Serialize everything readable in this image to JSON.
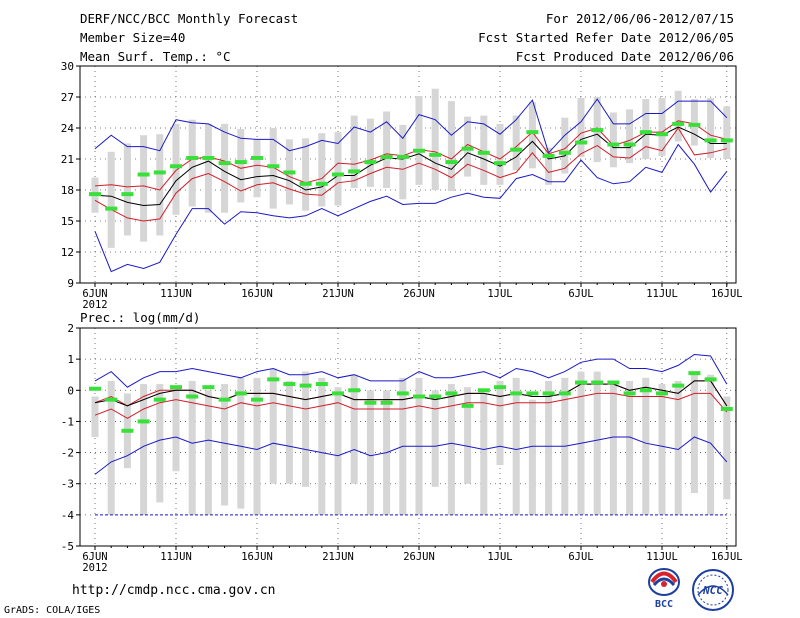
{
  "header": {
    "title": "DERF/NCC/BCC Monthly Forecast",
    "member_size": "Member Size=40",
    "period": "For 2012/06/06-2012/07/15",
    "fcst_started": "Fcst Started Refer Date 2012/06/05",
    "fcst_produced": "Fcst Produced Date 2012/06/06"
  },
  "footer": {
    "url": "http://cmdp.ncc.cma.gov.cn",
    "credit": "GrADS: COLA/IGES",
    "logo_left_text": "BCC",
    "logo_right_text": "NCC"
  },
  "colors": {
    "box": "#d6d6d6",
    "median": "#000000",
    "quartile": "#d21e28",
    "extreme": "#1a1ac8",
    "observed": "#3ae03a"
  },
  "chart_data": [
    {
      "type": "box-line",
      "title": "Mean Surf. Temp.: °C",
      "ylabel": "Mean Surf. Temp.: °C",
      "ylim": [
        9,
        30
      ],
      "yticks": [
        9,
        12,
        15,
        18,
        21,
        24,
        27,
        30
      ],
      "grid": true,
      "x_start": "6JUN",
      "x_end": "16JUL",
      "x_ticks": [
        {
          "day": 0,
          "label": "6JUN",
          "sub": "2012"
        },
        {
          "day": 5,
          "label": "11JUN"
        },
        {
          "day": 10,
          "label": "16JUN"
        },
        {
          "day": 15,
          "label": "21JUN"
        },
        {
          "day": 20,
          "label": "26JUN"
        },
        {
          "day": 25,
          "label": "1JUL"
        },
        {
          "day": 30,
          "label": "6JUL"
        },
        {
          "day": 35,
          "label": "11JUL"
        },
        {
          "day": 39,
          "label": "16JUL"
        }
      ],
      "days": 39,
      "series": {
        "max": [
          22.0,
          23.3,
          22.2,
          22.2,
          21.8,
          24.8,
          24.5,
          24.4,
          23.6,
          23.0,
          22.9,
          22.9,
          21.8,
          22.2,
          22.8,
          22.5,
          24.1,
          23.6,
          24.6,
          23.0,
          25.3,
          24.8,
          23.3,
          24.6,
          24.4,
          23.4,
          24.8,
          26.7,
          21.6,
          23.3,
          24.6,
          26.8,
          24.4,
          24.4,
          25.4,
          25.4,
          26.6,
          26.6,
          26.6,
          25.0
        ],
        "q3": [
          18.4,
          18.5,
          18.3,
          18.4,
          18.0,
          19.9,
          21.0,
          21.2,
          20.8,
          20.1,
          20.4,
          20.2,
          19.3,
          18.7,
          19.1,
          20.6,
          20.5,
          20.9,
          21.5,
          21.3,
          21.9,
          21.7,
          21.0,
          22.4,
          21.7,
          21.0,
          22.2,
          23.6,
          21.5,
          22.0,
          23.5,
          24.0,
          22.3,
          22.8,
          23.6,
          23.6,
          24.7,
          24.4,
          23.3,
          22.9
        ],
        "median": [
          17.5,
          17.4,
          16.8,
          16.5,
          16.6,
          18.9,
          20.2,
          20.8,
          19.8,
          19.0,
          19.3,
          19.4,
          18.9,
          18.0,
          18.3,
          19.4,
          19.4,
          20.4,
          21.1,
          21.0,
          21.5,
          20.6,
          20.0,
          21.6,
          21.0,
          20.3,
          21.2,
          22.7,
          21.0,
          21.3,
          22.9,
          23.4,
          22.1,
          22.1,
          23.4,
          23.3,
          24.1,
          23.4,
          22.5,
          22.5
        ],
        "q1": [
          17.0,
          16.1,
          15.3,
          15.0,
          15.2,
          17.7,
          19.1,
          19.6,
          18.8,
          17.9,
          18.5,
          18.7,
          18.1,
          17.6,
          17.5,
          18.7,
          18.9,
          19.6,
          20.2,
          20.0,
          20.6,
          20.0,
          19.2,
          20.5,
          19.9,
          19.2,
          19.7,
          21.6,
          19.7,
          20.1,
          21.5,
          22.3,
          21.2,
          21.1,
          22.2,
          21.8,
          24.0,
          21.4,
          21.6,
          22.0
        ],
        "min": [
          14.0,
          10.1,
          10.8,
          10.4,
          11.0,
          13.7,
          16.2,
          16.2,
          14.7,
          15.9,
          15.8,
          15.5,
          15.3,
          15.5,
          16.2,
          15.5,
          16.2,
          16.9,
          17.4,
          16.6,
          16.7,
          16.7,
          17.3,
          17.7,
          17.3,
          17.2,
          19.1,
          19.5,
          18.8,
          18.8,
          20.9,
          19.2,
          18.6,
          18.8,
          20.2,
          19.7,
          22.4,
          20.5,
          17.8,
          19.8
        ],
        "box_hi": [
          19.2,
          21.7,
          22.5,
          23.3,
          23.4,
          24.4,
          24.8,
          24.4,
          24.4,
          23.9,
          22.9,
          24.0,
          22.9,
          23.0,
          23.5,
          23.6,
          25.2,
          24.9,
          25.6,
          24.3,
          27.1,
          27.8,
          26.6,
          25.1,
          25.2,
          24.4,
          25.2,
          26.5,
          22.1,
          25.0,
          26.9,
          27.0,
          25.5,
          25.8,
          26.8,
          26.9,
          27.6,
          26.8,
          26.9,
          26.1
        ],
        "box_lo": [
          15.8,
          12.4,
          13.6,
          13.0,
          13.6,
          15.6,
          16.4,
          15.8,
          15.8,
          16.8,
          17.3,
          16.2,
          16.6,
          16.0,
          16.4,
          16.5,
          18.2,
          18.3,
          18.2,
          17.1,
          18.5,
          18.0,
          17.9,
          19.3,
          18.5,
          18.5,
          19.9,
          20.1,
          18.5,
          19.6,
          21.2,
          20.7,
          20.2,
          20.6,
          21.0,
          21.3,
          22.7,
          22.3,
          21.1,
          21.0
        ],
        "observed": [
          17.6,
          16.2,
          17.6,
          19.5,
          19.7,
          20.3,
          21.1,
          21.1,
          20.6,
          20.7,
          21.1,
          20.3,
          19.7,
          18.6,
          18.6,
          19.5,
          19.8,
          20.7,
          21.2,
          21.2,
          21.8,
          21.4,
          20.7,
          22.0,
          21.6,
          20.6,
          21.9,
          23.6,
          21.3,
          21.6,
          22.6,
          23.8,
          22.4,
          22.4,
          23.6,
          23.4,
          24.4,
          24.3,
          22.8,
          22.8
        ]
      }
    },
    {
      "type": "box-line",
      "title": "Prec.: log(mm/d)",
      "ylabel": "Prec.: log(mm/d)",
      "ylim": [
        -5,
        2
      ],
      "yticks": [
        -5,
        -4,
        -3,
        -2,
        -1,
        0,
        1,
        2
      ],
      "grid": true,
      "x_ticks": [
        {
          "day": 0,
          "label": "6JUN",
          "sub": "2012"
        },
        {
          "day": 5,
          "label": "11JUN"
        },
        {
          "day": 10,
          "label": "16JUN"
        },
        {
          "day": 15,
          "label": "21JUN"
        },
        {
          "day": 20,
          "label": "26JUN"
        },
        {
          "day": 25,
          "label": "1JUL"
        },
        {
          "day": 30,
          "label": "6JUL"
        },
        {
          "day": 35,
          "label": "11JUL"
        },
        {
          "day": 39,
          "label": "16JUL"
        }
      ],
      "days": 39,
      "series": {
        "max": [
          0.3,
          0.6,
          0.1,
          0.4,
          0.6,
          0.6,
          0.7,
          0.6,
          0.5,
          0.4,
          0.6,
          0.7,
          0.5,
          0.5,
          0.6,
          0.4,
          0.5,
          0.3,
          0.3,
          0.3,
          0.6,
          0.4,
          0.4,
          0.5,
          0.6,
          0.4,
          0.7,
          0.6,
          0.4,
          0.6,
          0.9,
          1.0,
          1.0,
          0.7,
          0.7,
          0.6,
          0.8,
          1.15,
          1.1,
          0.2
        ],
        "q3": [
          -0.4,
          -0.2,
          -0.5,
          -0.2,
          0.0,
          0.0,
          0.0,
          -0.2,
          -0.3,
          -0.1,
          -0.1,
          -0.1,
          -0.2,
          -0.3,
          -0.2,
          -0.1,
          -0.3,
          -0.3,
          -0.3,
          -0.3,
          -0.2,
          -0.3,
          -0.2,
          -0.1,
          -0.1,
          -0.2,
          -0.1,
          -0.2,
          -0.2,
          -0.1,
          0.2,
          0.2,
          0.2,
          0.0,
          0.1,
          0.0,
          -0.1,
          0.3,
          0.3,
          -0.5
        ],
        "median": [
          -0.4,
          -0.3,
          -0.5,
          -0.3,
          -0.1,
          0.0,
          0.0,
          -0.2,
          -0.3,
          -0.1,
          -0.1,
          -0.1,
          -0.2,
          -0.3,
          -0.2,
          -0.1,
          -0.3,
          -0.3,
          -0.3,
          -0.3,
          -0.2,
          -0.3,
          -0.2,
          -0.1,
          -0.1,
          -0.2,
          -0.1,
          -0.2,
          -0.2,
          -0.1,
          0.2,
          0.2,
          0.2,
          0.0,
          0.1,
          0.0,
          -0.1,
          0.3,
          0.3,
          -0.5
        ],
        "q1": [
          -0.8,
          -0.6,
          -0.9,
          -0.6,
          -0.4,
          -0.3,
          -0.4,
          -0.5,
          -0.6,
          -0.4,
          -0.5,
          -0.4,
          -0.5,
          -0.6,
          -0.5,
          -0.4,
          -0.6,
          -0.6,
          -0.6,
          -0.6,
          -0.5,
          -0.6,
          -0.5,
          -0.4,
          -0.4,
          -0.5,
          -0.4,
          -0.4,
          -0.4,
          -0.3,
          -0.2,
          -0.1,
          -0.1,
          -0.2,
          -0.2,
          -0.2,
          -0.3,
          -0.1,
          -0.1,
          -0.7
        ],
        "min": [
          -2.7,
          -2.3,
          -2.1,
          -1.8,
          -1.6,
          -1.5,
          -1.7,
          -1.6,
          -1.7,
          -1.8,
          -1.9,
          -1.7,
          -1.8,
          -1.9,
          -2.0,
          -2.1,
          -1.9,
          -2.1,
          -2.0,
          -1.8,
          -1.8,
          -1.8,
          -1.7,
          -1.8,
          -1.9,
          -1.8,
          -1.9,
          -1.8,
          -1.8,
          -1.8,
          -1.7,
          -1.6,
          -1.5,
          -1.5,
          -1.7,
          -1.8,
          -1.9,
          -1.5,
          -1.7,
          -2.3
        ],
        "box_hi": [
          -0.2,
          0.3,
          -0.1,
          0.2,
          0.2,
          0.1,
          0.3,
          0.0,
          0.2,
          0.4,
          0.4,
          0.7,
          0.3,
          0.6,
          0.4,
          0.1,
          0.5,
          0.0,
          0.0,
          0.4,
          0.4,
          0.0,
          0.2,
          0.1,
          -0.1,
          0.3,
          0.4,
          -0.3,
          0.3,
          0.4,
          0.6,
          0.6,
          0.3,
          0.3,
          0.4,
          0.2,
          0.3,
          0.6,
          0.5,
          -0.2
        ],
        "box_lo": [
          -1.5,
          -4.0,
          -2.5,
          -4.0,
          -3.6,
          -2.6,
          -4.0,
          -4.0,
          -3.7,
          -3.8,
          -4.0,
          -3.0,
          -3.0,
          -3.1,
          -4.0,
          -4.0,
          -3.0,
          -4.0,
          -4.0,
          -4.0,
          -4.0,
          -3.1,
          -4.0,
          -3.0,
          -4.0,
          -2.4,
          -4.0,
          -4.0,
          -4.0,
          -4.0,
          -4.0,
          -4.0,
          -4.0,
          -4.0,
          -4.0,
          -4.0,
          -4.0,
          -3.3,
          -4.0,
          -3.5
        ],
        "observed": [
          0.05,
          -0.3,
          -1.3,
          -1.0,
          -0.3,
          0.1,
          -0.2,
          0.1,
          -0.3,
          -0.1,
          -0.3,
          0.35,
          0.2,
          0.15,
          0.2,
          -0.1,
          0.0,
          -0.4,
          -0.4,
          -0.1,
          -0.2,
          -0.2,
          -0.1,
          -0.5,
          0.0,
          0.1,
          -0.1,
          -0.1,
          -0.1,
          -0.1,
          0.25,
          0.25,
          0.25,
          -0.1,
          0.0,
          -0.1,
          0.15,
          0.55,
          0.35,
          -0.6
        ],
        "floor": -4.0
      }
    }
  ]
}
